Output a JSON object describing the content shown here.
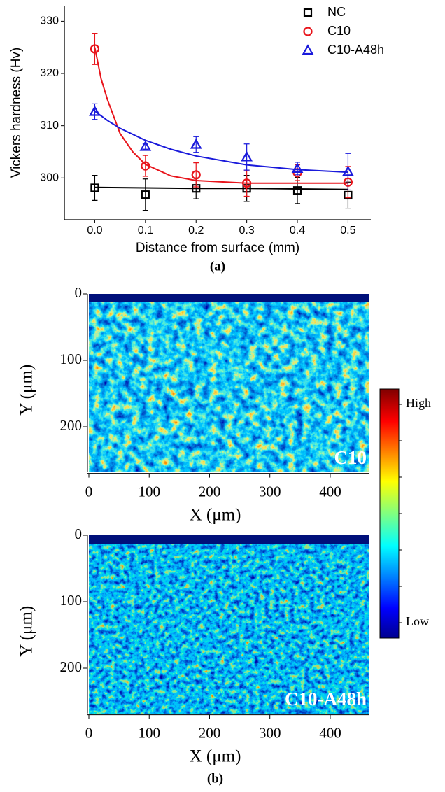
{
  "chart_data": [
    {
      "type": "scatter",
      "xlabel": "Distance from surface (mm)",
      "ylabel": "Vickers hardness (Hv)",
      "caption": "(a)",
      "x": [
        0,
        0.1,
        0.2,
        0.3,
        0.4,
        0.5
      ],
      "xlim": [
        -0.06,
        0.545
      ],
      "ylim": [
        292,
        333
      ],
      "xticks": [
        {
          "value": 0,
          "label": "0.0"
        },
        0.1,
        0.2,
        0.3,
        0.4,
        0.5
      ],
      "yticks": [
        300,
        310,
        320,
        330
      ],
      "legend": "upper right",
      "series": [
        {
          "name": "NC",
          "color": "#000000",
          "marker": "square",
          "values": [
            298.1,
            296.8,
            298.0,
            298.0,
            297.6,
            296.7
          ],
          "errors": [
            2.4,
            3.0,
            2.0,
            2.5,
            2.5,
            2.5
          ],
          "fit": {
            "x": [
              0,
              0.1,
              0.2,
              0.3,
              0.4,
              0.5
            ],
            "values": [
              298.2,
              298.1,
              298.0,
              298.0,
              297.9,
              297.8
            ]
          }
        },
        {
          "name": "C10",
          "color": "#e8141b",
          "marker": "circle",
          "values": [
            324.7,
            302.3,
            300.6,
            299.0,
            301.0,
            299.2
          ],
          "errors": [
            3.0,
            2.0,
            2.3,
            2.5,
            1.5,
            3.0
          ],
          "fit": {
            "x": [
              0,
              0.0125,
              0.025,
              0.05,
              0.075,
              0.1,
              0.15,
              0.2,
              0.3,
              0.4,
              0.5
            ],
            "values": [
              325.0,
              319.0,
              315.0,
              308.5,
              305.0,
              302.6,
              300.4,
              299.5,
              299.0,
              299.0,
              299.0
            ]
          }
        },
        {
          "name": "C10-A48h",
          "color": "#1a1adb",
          "marker": "triangle",
          "values": [
            312.7,
            306.0,
            306.4,
            304.0,
            301.8,
            301.2
          ],
          "errors": [
            1.5,
            0.5,
            1.5,
            2.5,
            1.2,
            3.5
          ],
          "fit": {
            "x": [
              0,
              0.025,
              0.05,
              0.1,
              0.15,
              0.2,
              0.3,
              0.4,
              0.5
            ],
            "values": [
              312.8,
              311.0,
              309.5,
              307.2,
              305.5,
              304.2,
              302.5,
              301.6,
              301.1
            ]
          }
        }
      ]
    },
    {
      "type": "heatmap",
      "label": "C10",
      "xlabel": "X (μm)",
      "ylabel": "Y (μm)",
      "xlim": [
        0,
        465
      ],
      "ylim": [
        0,
        268
      ],
      "xticks": [
        0,
        100,
        200,
        300,
        400
      ],
      "yticks": [
        0,
        100,
        200
      ]
    },
    {
      "type": "heatmap",
      "label": "C10-A48h",
      "xlabel": "X (μm)",
      "ylabel": "Y (μm)",
      "xlim": [
        0,
        465
      ],
      "ylim": [
        0,
        268
      ],
      "xticks": [
        0,
        100,
        200,
        300,
        400
      ],
      "yticks": [
        0,
        100,
        200
      ],
      "caption": "(b)"
    }
  ],
  "colorbar": {
    "high": "High",
    "low": "Low"
  }
}
